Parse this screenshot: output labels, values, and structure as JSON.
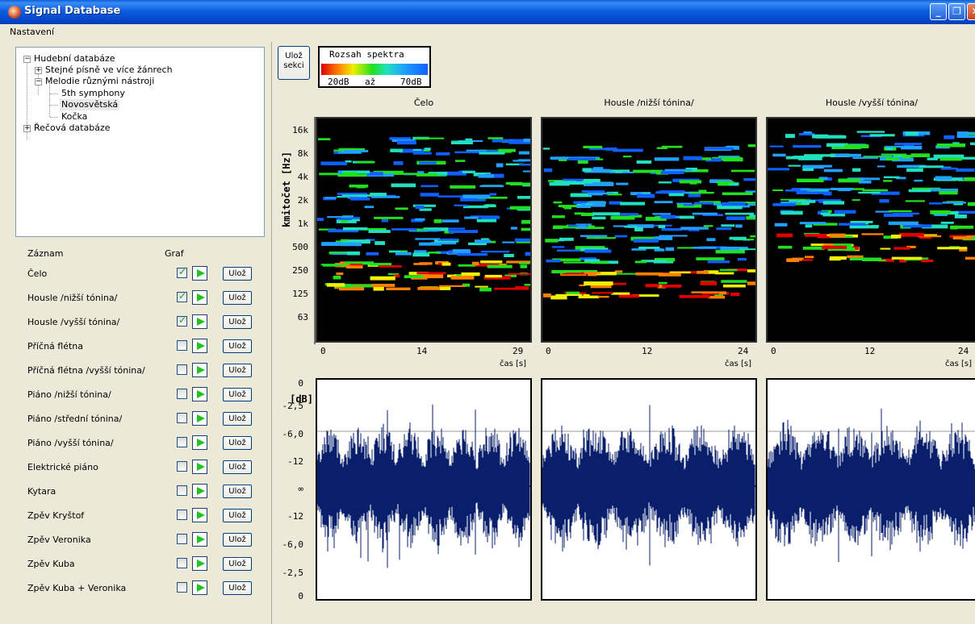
{
  "window": {
    "title": "Signal Database"
  },
  "menu": {
    "settings": "Nastavení"
  },
  "tree": {
    "root1": "Hudební databáze",
    "child1": "Stejné písně ve více žánrech",
    "child2": "Melodie různými nástroji",
    "leaf1": "5th symphony",
    "leaf2": "Novosvětská",
    "leaf3": "Kočka",
    "root2": "Řečová databáze"
  },
  "records": {
    "header_label": "Záznam",
    "header_graph": "Graf",
    "save_label": "Ulož",
    "items": [
      {
        "label": "Čelo",
        "checked": true
      },
      {
        "label": "Housle /nižší tónina/",
        "checked": true
      },
      {
        "label": "Housle /vyšší tónina/",
        "checked": true
      },
      {
        "label": "Příčná flétna",
        "checked": false
      },
      {
        "label": "Příčná flétna /vyšší tónina/",
        "checked": false
      },
      {
        "label": "Piáno /nižší tónina/",
        "checked": false
      },
      {
        "label": "Piáno /střední tónina/",
        "checked": false
      },
      {
        "label": "Piáno /vyšší tónina/",
        "checked": false
      },
      {
        "label": "Elektrické piáno",
        "checked": false
      },
      {
        "label": "Kytara",
        "checked": false
      },
      {
        "label": "Zpěv Kryštof",
        "checked": false
      },
      {
        "label": "Zpěv Veronika",
        "checked": false
      },
      {
        "label": "Zpěv Kuba",
        "checked": false
      },
      {
        "label": "Zpěv Kuba + Veronika",
        "checked": false
      }
    ]
  },
  "toolbar": {
    "save_section": "Ulož sekci"
  },
  "legend": {
    "title": "Rozsah spektra",
    "min": "20dB",
    "joiner": "až",
    "max": "70dB"
  },
  "spectrogram": {
    "y_title": "kmitočet [Hz]",
    "y_ticks": [
      "16k",
      "8k",
      "4k",
      "2k",
      "1k",
      "500",
      "250",
      "125",
      "63"
    ],
    "x_unit": "čas [s]"
  },
  "waveform": {
    "y_title": "[dB]",
    "y_ticks": [
      "0",
      "-2,5",
      "-6,0",
      "-12",
      "∞",
      "-12",
      "-6,0",
      "-2,5",
      "0"
    ]
  },
  "columns": [
    {
      "title": "Čelo",
      "x_ticks": [
        "0",
        "14",
        "29"
      ]
    },
    {
      "title": "Housle /nižší tónina/",
      "x_ticks": [
        "0",
        "12",
        "24"
      ]
    },
    {
      "title": "Housle /vyšší tónina/",
      "x_ticks": [
        "0",
        "12",
        "24"
      ]
    }
  ],
  "colors": {
    "title_bar": "#0b5ee0",
    "waveform": "#0a1f6b",
    "spectrum_low": "#1060ff",
    "spectrum_high": "#e00000"
  }
}
